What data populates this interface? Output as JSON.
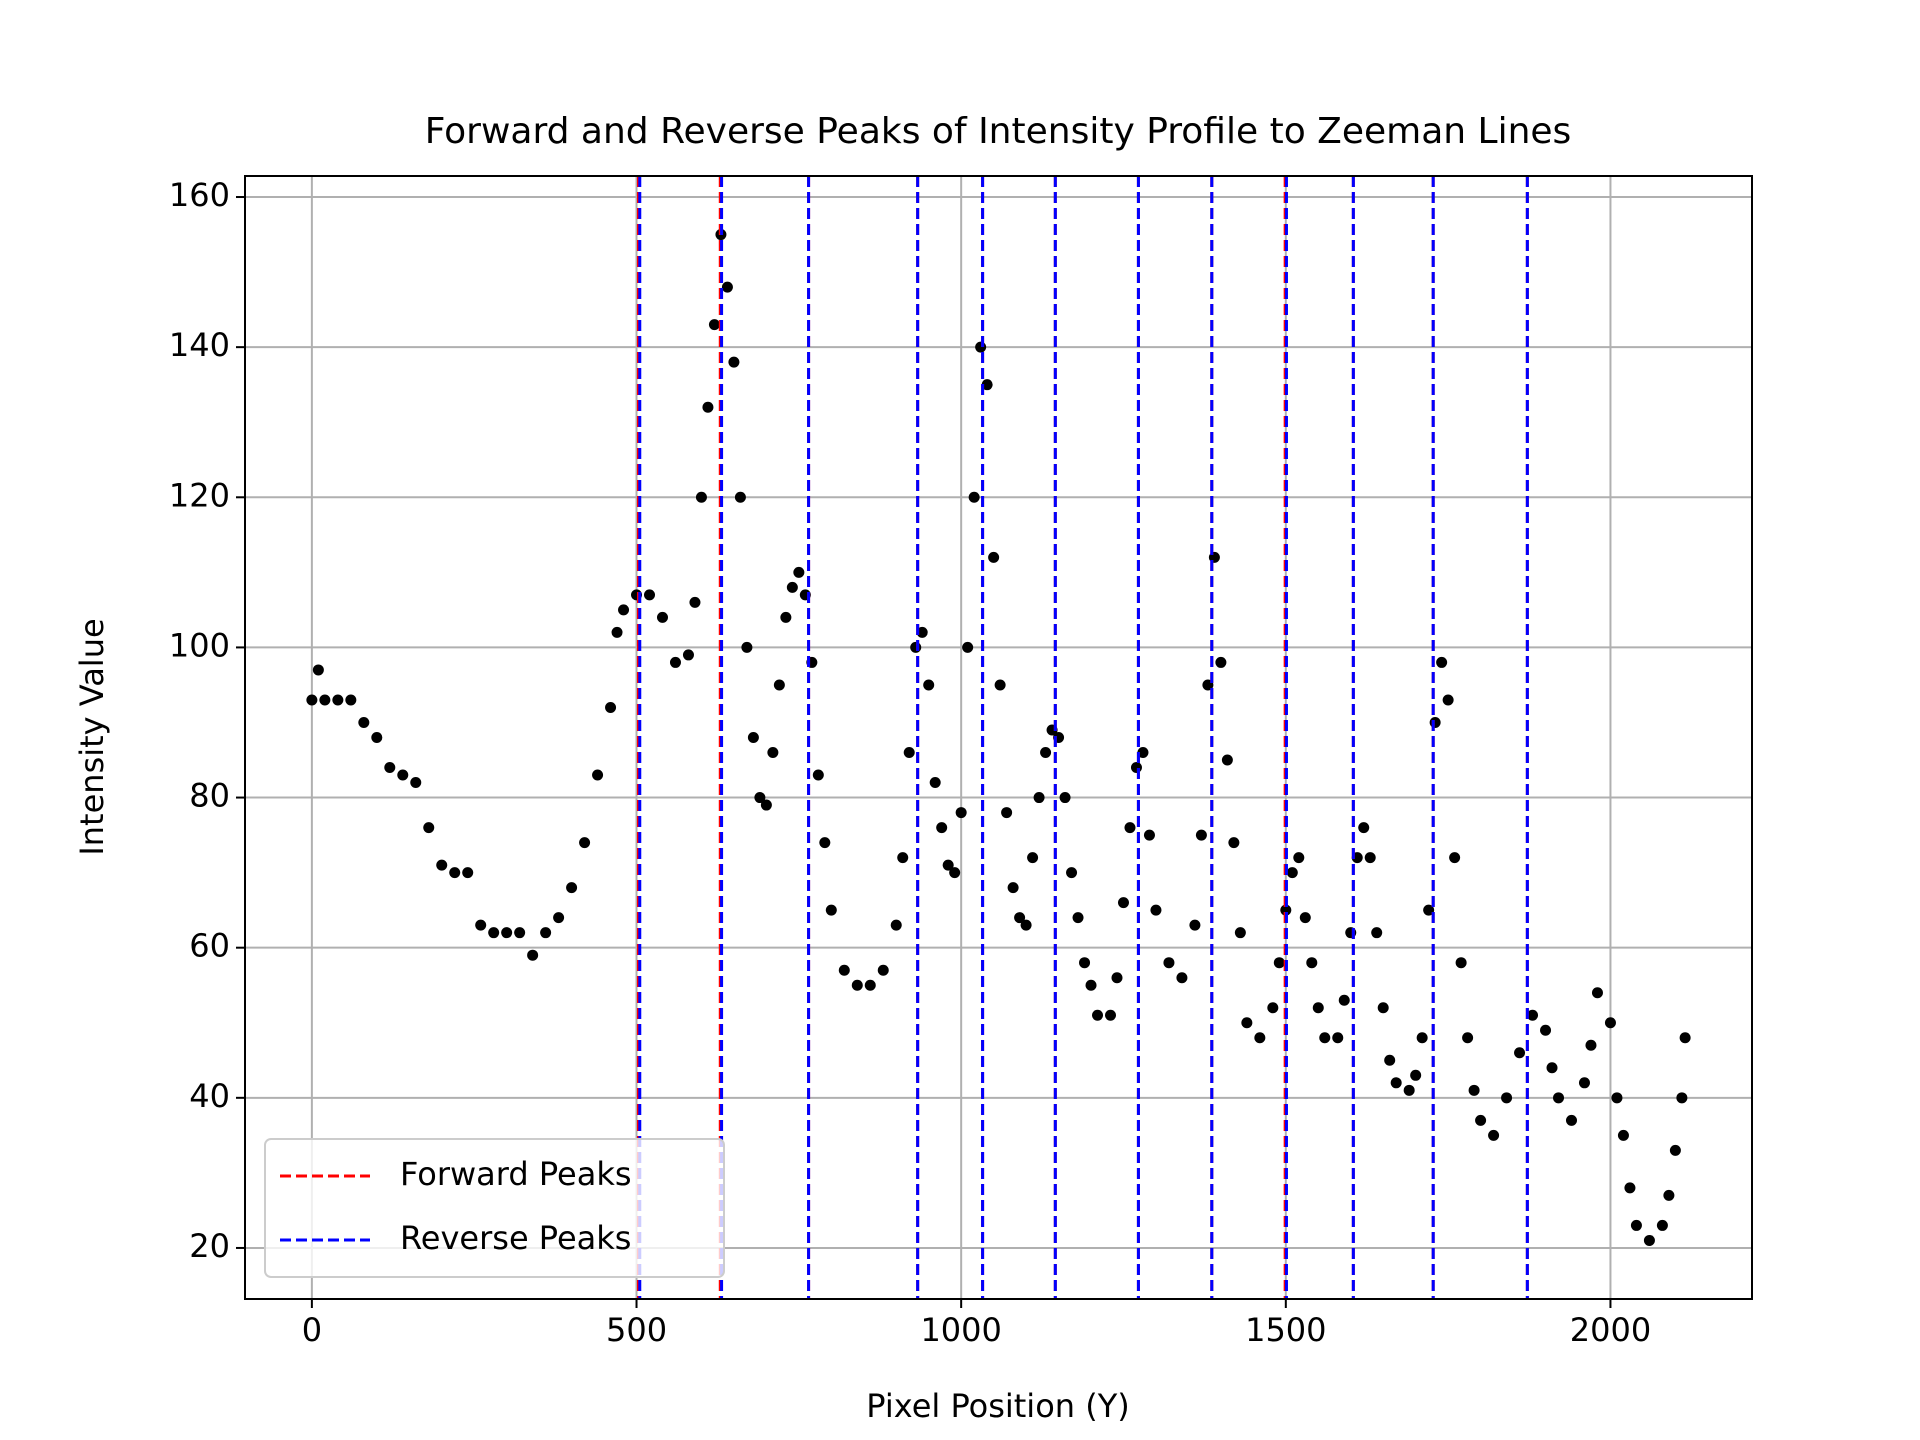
{
  "chart_data": {
    "type": "scatter",
    "title": "Forward and Reverse Peaks of Intensity Profile to Zeeman Lines",
    "xlabel": "Pixel Position (Y)",
    "ylabel": "Intensity Value",
    "color": "#000000",
    "x": [
      0,
      10,
      20,
      40,
      60,
      80,
      100,
      120,
      140,
      160,
      180,
      200,
      220,
      240,
      260,
      280,
      300,
      320,
      340,
      360,
      380,
      400,
      420,
      440,
      460,
      470,
      480,
      500,
      520,
      540,
      560,
      580,
      590,
      600,
      610,
      620,
      630,
      640,
      650,
      660,
      670,
      680,
      690,
      700,
      710,
      720,
      730,
      740,
      750,
      760,
      770,
      780,
      790,
      800,
      820,
      840,
      860,
      880,
      900,
      910,
      920,
      930,
      940,
      950,
      960,
      970,
      980,
      990,
      1000,
      1010,
      1020,
      1030,
      1040,
      1050,
      1060,
      1070,
      1080,
      1090,
      1100,
      1110,
      1120,
      1130,
      1140,
      1150,
      1160,
      1170,
      1180,
      1190,
      1200,
      1210,
      1230,
      1240,
      1250,
      1260,
      1270,
      1280,
      1290,
      1300,
      1320,
      1340,
      1360,
      1370,
      1380,
      1390,
      1400,
      1410,
      1420,
      1430,
      1440,
      1460,
      1480,
      1490,
      1500,
      1510,
      1520,
      1530,
      1540,
      1550,
      1560,
      1580,
      1590,
      1600,
      1610,
      1620,
      1630,
      1640,
      1650,
      1660,
      1670,
      1690,
      1700,
      1710,
      1720,
      1730,
      1740,
      1750,
      1760,
      1770,
      1780,
      1790,
      1800,
      1820,
      1840,
      1860,
      1880,
      1900,
      1910,
      1920,
      1940,
      1960,
      1970,
      1980,
      2000,
      2010,
      2020,
      2030,
      2040,
      2060,
      2080,
      2090,
      2100,
      2110,
      2115
    ],
    "values": [
      93,
      97,
      93,
      93,
      93,
      90,
      88,
      84,
      83,
      82,
      76,
      71,
      70,
      70,
      63,
      62,
      62,
      62,
      59,
      62,
      64,
      68,
      74,
      83,
      92,
      102,
      105,
      107,
      107,
      104,
      98,
      99,
      106,
      120,
      132,
      143,
      155,
      148,
      138,
      120,
      100,
      88,
      80,
      79,
      86,
      95,
      104,
      108,
      110,
      107,
      98,
      83,
      74,
      65,
      57,
      55,
      55,
      57,
      63,
      72,
      86,
      100,
      102,
      95,
      82,
      76,
      71,
      70,
      78,
      100,
      120,
      140,
      135,
      112,
      95,
      78,
      68,
      64,
      63,
      72,
      80,
      86,
      89,
      88,
      80,
      70,
      64,
      58,
      55,
      51,
      51,
      56,
      66,
      76,
      84,
      86,
      75,
      65,
      58,
      56,
      63,
      75,
      95,
      112,
      98,
      85,
      74,
      62,
      50,
      48,
      52,
      58,
      65,
      70,
      72,
      64,
      58,
      52,
      48,
      48,
      53,
      62,
      72,
      76,
      72,
      62,
      52,
      45,
      42,
      41,
      43,
      48,
      65,
      90,
      98,
      93,
      72,
      58,
      48,
      41,
      37,
      35,
      40,
      46,
      51,
      49,
      44,
      40,
      37,
      42,
      47,
      54,
      50,
      40,
      35,
      28,
      23,
      21,
      23,
      27,
      33,
      40,
      48
    ],
    "peak_lines": [
      {
        "name": "Forward Peaks",
        "color": "#ff0000",
        "values": [
          503,
          629,
          765,
          933,
          1033,
          1145,
          1273,
          1386,
          1499,
          1604,
          1727,
          1872
        ]
      },
      {
        "name": "Reverse Peaks",
        "color": "#0000ff",
        "values": [
          505,
          631,
          765,
          933,
          1033,
          1145,
          1273,
          1386,
          1501,
          1604,
          1727,
          1872
        ]
      }
    ],
    "xlim": [
      -103,
      2218
    ],
    "ylim": [
      13.2,
      162.8
    ],
    "xticks": [
      0,
      500,
      1000,
      1500,
      2000
    ],
    "yticks": [
      20,
      40,
      60,
      80,
      100,
      120,
      140,
      160
    ],
    "grid": true,
    "legend": "lower left"
  }
}
